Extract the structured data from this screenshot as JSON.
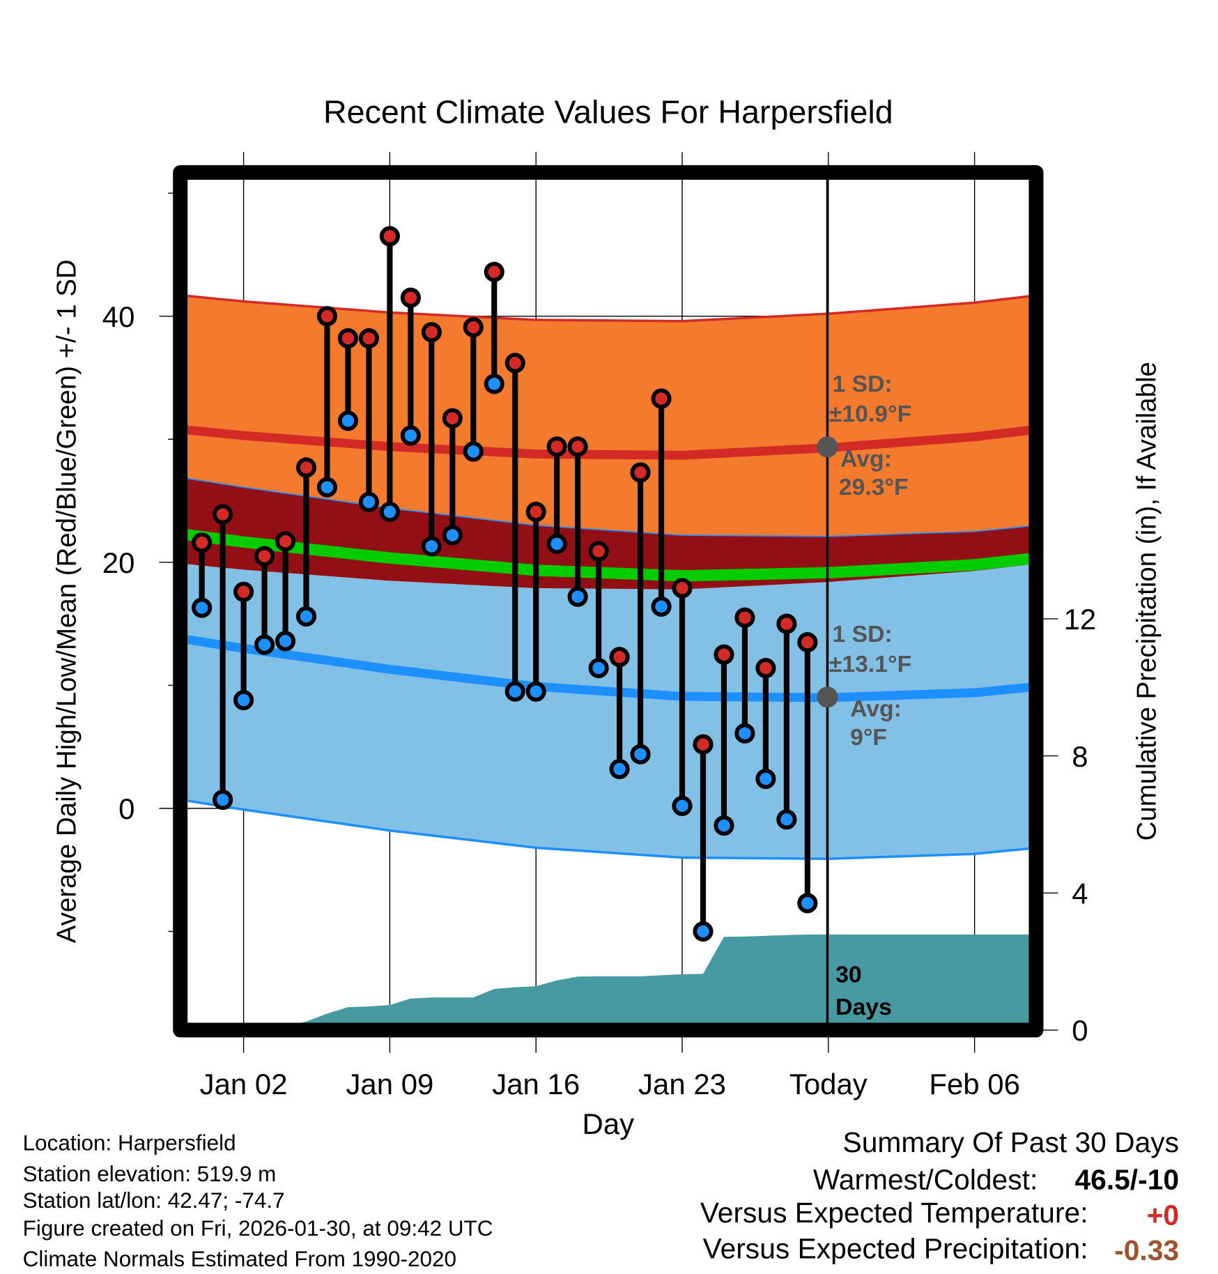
{
  "chart_data": {
    "type": "line",
    "title": "Recent Climate Values For Harpersfield",
    "xlabel": "Day",
    "ylabel": "Average Daily High/Low/Mean (Red/Blue/Green) +/- 1 SD",
    "y2label": "Cumulative Precipitation (in), If Available",
    "ylim": [
      -17.5,
      51
    ],
    "y2lim": [
      0,
      16.3
    ],
    "xlim": [
      "2025-12-30",
      "2026-02-08"
    ],
    "x_ticks": [
      {
        "date": "2026-01-02",
        "label": "Jan 02"
      },
      {
        "date": "2026-01-09",
        "label": "Jan 09"
      },
      {
        "date": "2026-01-16",
        "label": "Jan 16"
      },
      {
        "date": "2026-01-23",
        "label": "Jan 23"
      },
      {
        "date": "2026-01-30",
        "label": "Today"
      },
      {
        "date": "2026-02-06",
        "label": "Feb 06"
      }
    ],
    "y_ticks": [
      {
        "value": 0,
        "label": "0"
      },
      {
        "value": 20,
        "label": "20"
      },
      {
        "value": 40,
        "label": "40"
      }
    ],
    "y_minor_ticks": [
      -10,
      10,
      30,
      50
    ],
    "y2_ticks": [
      {
        "value": 0,
        "label": "0"
      },
      {
        "value": 4,
        "label": "4"
      },
      {
        "value": 8,
        "label": "8"
      },
      {
        "value": 12,
        "label": "12"
      }
    ],
    "days": [
      "2025-12-31",
      "2026-01-01",
      "2026-01-02",
      "2026-01-03",
      "2026-01-04",
      "2026-01-05",
      "2026-01-06",
      "2026-01-07",
      "2026-01-08",
      "2026-01-09",
      "2026-01-10",
      "2026-01-11",
      "2026-01-12",
      "2026-01-13",
      "2026-01-14",
      "2026-01-15",
      "2026-01-16",
      "2026-01-17",
      "2026-01-18",
      "2026-01-19",
      "2026-01-20",
      "2026-01-21",
      "2026-01-22",
      "2026-01-23",
      "2026-01-24",
      "2026-01-25",
      "2026-01-26",
      "2026-01-27",
      "2026-01-28",
      "2026-01-29"
    ],
    "series": [
      {
        "name": "Daily High",
        "color": "#d42a26",
        "values": [
          21.6,
          23.9,
          17.6,
          20.5,
          21.7,
          27.7,
          40.0,
          38.2,
          38.2,
          46.5,
          41.5,
          38.7,
          31.7,
          39.1,
          43.6,
          36.2,
          24.1,
          29.4,
          29.4,
          20.9,
          12.3,
          27.3,
          33.3,
          17.9,
          5.2,
          12.5,
          15.5,
          11.4,
          15.0,
          13.5
        ]
      },
      {
        "name": "Daily Low",
        "color": "#1e8fff",
        "values": [
          16.3,
          0.7,
          8.8,
          13.3,
          13.6,
          15.6,
          26.1,
          31.5,
          24.9,
          24.1,
          30.3,
          21.3,
          22.2,
          29.0,
          34.5,
          9.5,
          9.5,
          21.5,
          17.2,
          11.4,
          3.2,
          4.4,
          16.4,
          0.2,
          -10.0,
          -1.4,
          6.1,
          2.4,
          -0.9,
          -7.7
        ]
      },
      {
        "name": "Cumulative Precipitation",
        "color": "#4799a2",
        "axis": "right",
        "values": [
          0,
          0,
          0,
          0.02,
          0.1,
          0.25,
          0.48,
          0.67,
          0.69,
          0.73,
          0.92,
          0.95,
          0.95,
          0.95,
          1.2,
          1.25,
          1.28,
          1.45,
          1.56,
          1.57,
          1.57,
          1.57,
          1.6,
          1.63,
          1.64,
          2.72,
          2.73,
          2.75,
          2.77,
          2.79
        ]
      }
    ],
    "normals": {
      "dates": [
        "2025-12-30",
        "2026-01-02",
        "2026-01-09",
        "2026-01-16",
        "2026-01-23",
        "2026-01-30",
        "2026-02-06",
        "2026-02-09"
      ],
      "avg_high": [
        30.8,
        30.3,
        29.4,
        28.8,
        28.7,
        29.3,
        30.2,
        30.8
      ],
      "avg_low": [
        13.8,
        13.0,
        11.3,
        9.9,
        9.1,
        9.0,
        9.4,
        9.9
      ],
      "high_sd": 10.9,
      "low_sd": 13.1,
      "colors": {
        "high_band": "#f47a2e",
        "low_band": "#82c0e6",
        "overlap": "#920f15",
        "mean": "#00cc00",
        "high_line": "#d42a26",
        "low_line": "#1e8fff"
      }
    },
    "annotations": {
      "high_sd_label": "1 SD:",
      "high_sd_value": "±10.9°F",
      "high_avg_label": "Avg:",
      "high_avg_value": "29.3°F",
      "low_sd_label": "1 SD:",
      "low_sd_value": "±13.1°F",
      "low_avg_label": "Avg:",
      "low_avg_value": "9°F",
      "period_num": "30",
      "period_unit": "Days"
    }
  },
  "footer": {
    "location": "Location: Harpersfield",
    "elevation": "Station elevation: 519.9 m",
    "latlon": "Station lat/lon: 42.47; -74.7",
    "created": "Figure created on Fri, 2026-01-30, at 09:42 UTC",
    "normals": "Climate Normals Estimated From 1990-2020"
  },
  "summary": {
    "title": "Summary Of Past 30 Days",
    "warmest_label": "Warmest/Coldest:",
    "warmest_value": "46.5/-10",
    "temp_label": "Versus Expected Temperature:",
    "temp_value": "+0",
    "temp_color": "#d42a26",
    "precip_label": "Versus Expected Precipitation:",
    "precip_value": "-0.33",
    "precip_color": "#a0522d"
  }
}
